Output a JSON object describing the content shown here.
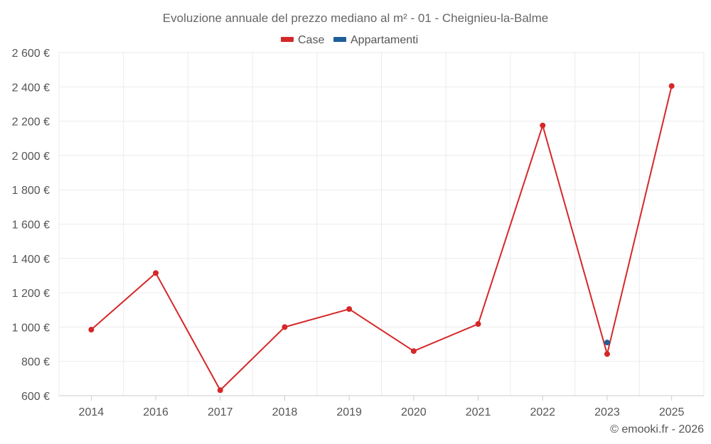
{
  "chart_data": {
    "type": "line",
    "title": "Evoluzione annuale del prezzo mediano al m² - 01 - Cheignieu-la-Balme",
    "categories": [
      "2014",
      "2016",
      "2017",
      "2018",
      "2019",
      "2020",
      "2021",
      "2022",
      "2023",
      "2025"
    ],
    "y_ticks": [
      "600 €",
      "800 €",
      "1 000 €",
      "1 200 €",
      "1 400 €",
      "1 600 €",
      "1 800 €",
      "2 000 €",
      "2 200 €",
      "2 400 €",
      "2 600 €"
    ],
    "ylim": [
      600,
      2600
    ],
    "grid": true,
    "legend_position": "top-center",
    "series": [
      {
        "name": "Case",
        "color": "#d62728",
        "values": [
          985,
          1315,
          632,
          1000,
          1105,
          860,
          1018,
          2175,
          843,
          2405
        ]
      },
      {
        "name": "Appartamenti",
        "color": "#1f5f99",
        "values": [
          null,
          null,
          null,
          null,
          null,
          null,
          null,
          null,
          910,
          null
        ]
      }
    ],
    "credit": "© emooki.fr - 2026"
  }
}
